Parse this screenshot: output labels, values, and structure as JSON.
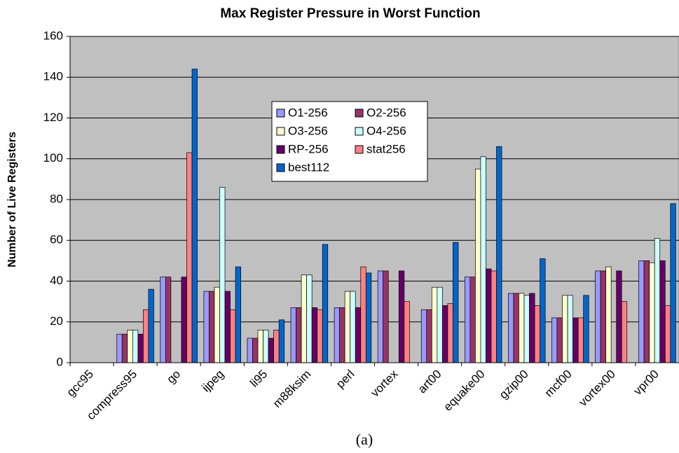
{
  "chart_data": {
    "type": "bar",
    "title": "Max Register Pressure in Worst Function",
    "y_label": "Number of Live Registers",
    "caption": "(a)",
    "categories": [
      "gcc95",
      "compress95",
      "go",
      "ijpeg",
      "li95",
      "m88ksim",
      "perl",
      "vortex",
      "art00",
      "equake00",
      "gzip00",
      "mcf00",
      "vortex00",
      "vpr00"
    ],
    "series": [
      {
        "name": "O1-256",
        "color": "#9999ff",
        "values": [
          0,
          14,
          42,
          35,
          12,
          27,
          27,
          45,
          26,
          42,
          34,
          22,
          45,
          50
        ]
      },
      {
        "name": "O2-256",
        "color": "#993366",
        "values": [
          0,
          14,
          42,
          35,
          12,
          27,
          27,
          45,
          26,
          42,
          34,
          22,
          45,
          50
        ]
      },
      {
        "name": "O3-256",
        "color": "#ffffcc",
        "values": [
          0,
          16,
          0,
          37,
          16,
          43,
          35,
          0,
          37,
          95,
          34,
          33,
          47,
          49
        ]
      },
      {
        "name": "O4-256",
        "color": "#ccffff",
        "values": [
          0,
          16,
          0,
          86,
          16,
          43,
          35,
          0,
          37,
          101,
          33,
          33,
          0,
          61
        ]
      },
      {
        "name": "RP-256",
        "color": "#660066",
        "values": [
          0,
          14,
          42,
          35,
          12,
          27,
          27,
          45,
          28,
          46,
          34,
          22,
          45,
          50
        ]
      },
      {
        "name": "stat256",
        "color": "#ff8080",
        "values": [
          0,
          26,
          103,
          26,
          16,
          26,
          47,
          30,
          29,
          45,
          28,
          22,
          30,
          28
        ]
      },
      {
        "name": "best112",
        "color": "#0066cc",
        "values": [
          0,
          36,
          144,
          47,
          21,
          58,
          44,
          0,
          59,
          106,
          51,
          33,
          0,
          78
        ]
      }
    ],
    "ylim": [
      0,
      160
    ],
    "yticks": [
      0,
      20,
      40,
      60,
      80,
      100,
      120,
      140,
      160
    ],
    "grid": true
  }
}
